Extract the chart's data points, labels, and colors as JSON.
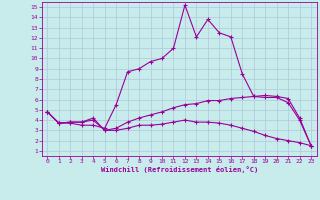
{
  "xlabel": "Windchill (Refroidissement éolien,°C)",
  "bg_color": "#c8ecec",
  "line_color": "#990099",
  "grid_color": "#b0c8d8",
  "xlim": [
    -0.5,
    23.5
  ],
  "ylim": [
    0.5,
    15.5
  ],
  "xticks": [
    0,
    1,
    2,
    3,
    4,
    5,
    6,
    7,
    8,
    9,
    10,
    11,
    12,
    13,
    14,
    15,
    16,
    17,
    18,
    19,
    20,
    21,
    22,
    23
  ],
  "yticks": [
    1,
    2,
    3,
    4,
    5,
    6,
    7,
    8,
    9,
    10,
    11,
    12,
    13,
    14,
    15
  ],
  "line1_x": [
    0,
    1,
    2,
    3,
    4,
    5,
    6,
    7,
    8,
    9,
    10,
    11,
    12,
    13,
    14,
    15,
    16,
    17,
    18,
    19,
    20,
    21,
    22,
    23
  ],
  "line1_y": [
    4.8,
    3.7,
    3.7,
    3.5,
    3.5,
    3.2,
    5.5,
    8.7,
    9.0,
    9.7,
    10.0,
    11.0,
    15.2,
    12.1,
    13.8,
    12.5,
    12.1,
    8.5,
    6.3,
    6.2,
    6.2,
    5.7,
    4.0,
    1.5
  ],
  "line2_x": [
    0,
    1,
    2,
    3,
    4,
    5,
    6,
    7,
    8,
    9,
    10,
    11,
    12,
    13,
    14,
    15,
    16,
    17,
    18,
    19,
    20,
    21,
    22,
    23
  ],
  "line2_y": [
    4.8,
    3.7,
    3.8,
    3.8,
    4.2,
    3.0,
    3.2,
    3.8,
    4.2,
    4.5,
    4.8,
    5.2,
    5.5,
    5.6,
    5.9,
    5.9,
    6.1,
    6.2,
    6.3,
    6.4,
    6.3,
    6.1,
    4.2,
    1.5
  ],
  "line3_x": [
    0,
    1,
    2,
    3,
    4,
    5,
    6,
    7,
    8,
    9,
    10,
    11,
    12,
    13,
    14,
    15,
    16,
    17,
    18,
    19,
    20,
    21,
    22,
    23
  ],
  "line3_y": [
    4.8,
    3.7,
    3.8,
    3.8,
    4.0,
    3.0,
    3.0,
    3.2,
    3.5,
    3.5,
    3.6,
    3.8,
    4.0,
    3.8,
    3.8,
    3.7,
    3.5,
    3.2,
    2.9,
    2.5,
    2.2,
    2.0,
    1.8,
    1.5
  ]
}
